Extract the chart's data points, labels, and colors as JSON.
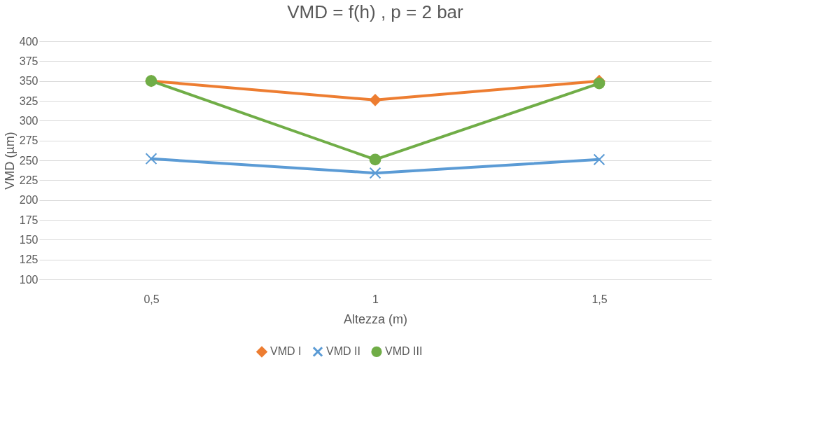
{
  "chart_data": {
    "type": "line",
    "title": "VMD = f(h) , p = 2 bar",
    "xlabel": "Altezza (m)",
    "ylabel": "VMD (µm)",
    "categories": [
      "0,5",
      "1",
      "1,5"
    ],
    "series": [
      {
        "name": "VMD I",
        "color": "#ed7d31",
        "marker": "diamond",
        "values": [
          350,
          326,
          350
        ]
      },
      {
        "name": "VMD II",
        "color": "#5b9bd5",
        "marker": "cross",
        "values": [
          252,
          234,
          251
        ]
      },
      {
        "name": "VMD III",
        "color": "#70ad47",
        "marker": "circle",
        "values": [
          350,
          251,
          347
        ]
      }
    ],
    "ylim": [
      100,
      400
    ],
    "yticks": [
      100,
      125,
      150,
      175,
      200,
      225,
      250,
      275,
      300,
      325,
      350,
      375,
      400
    ],
    "grid": "y",
    "legend": "bottom"
  }
}
